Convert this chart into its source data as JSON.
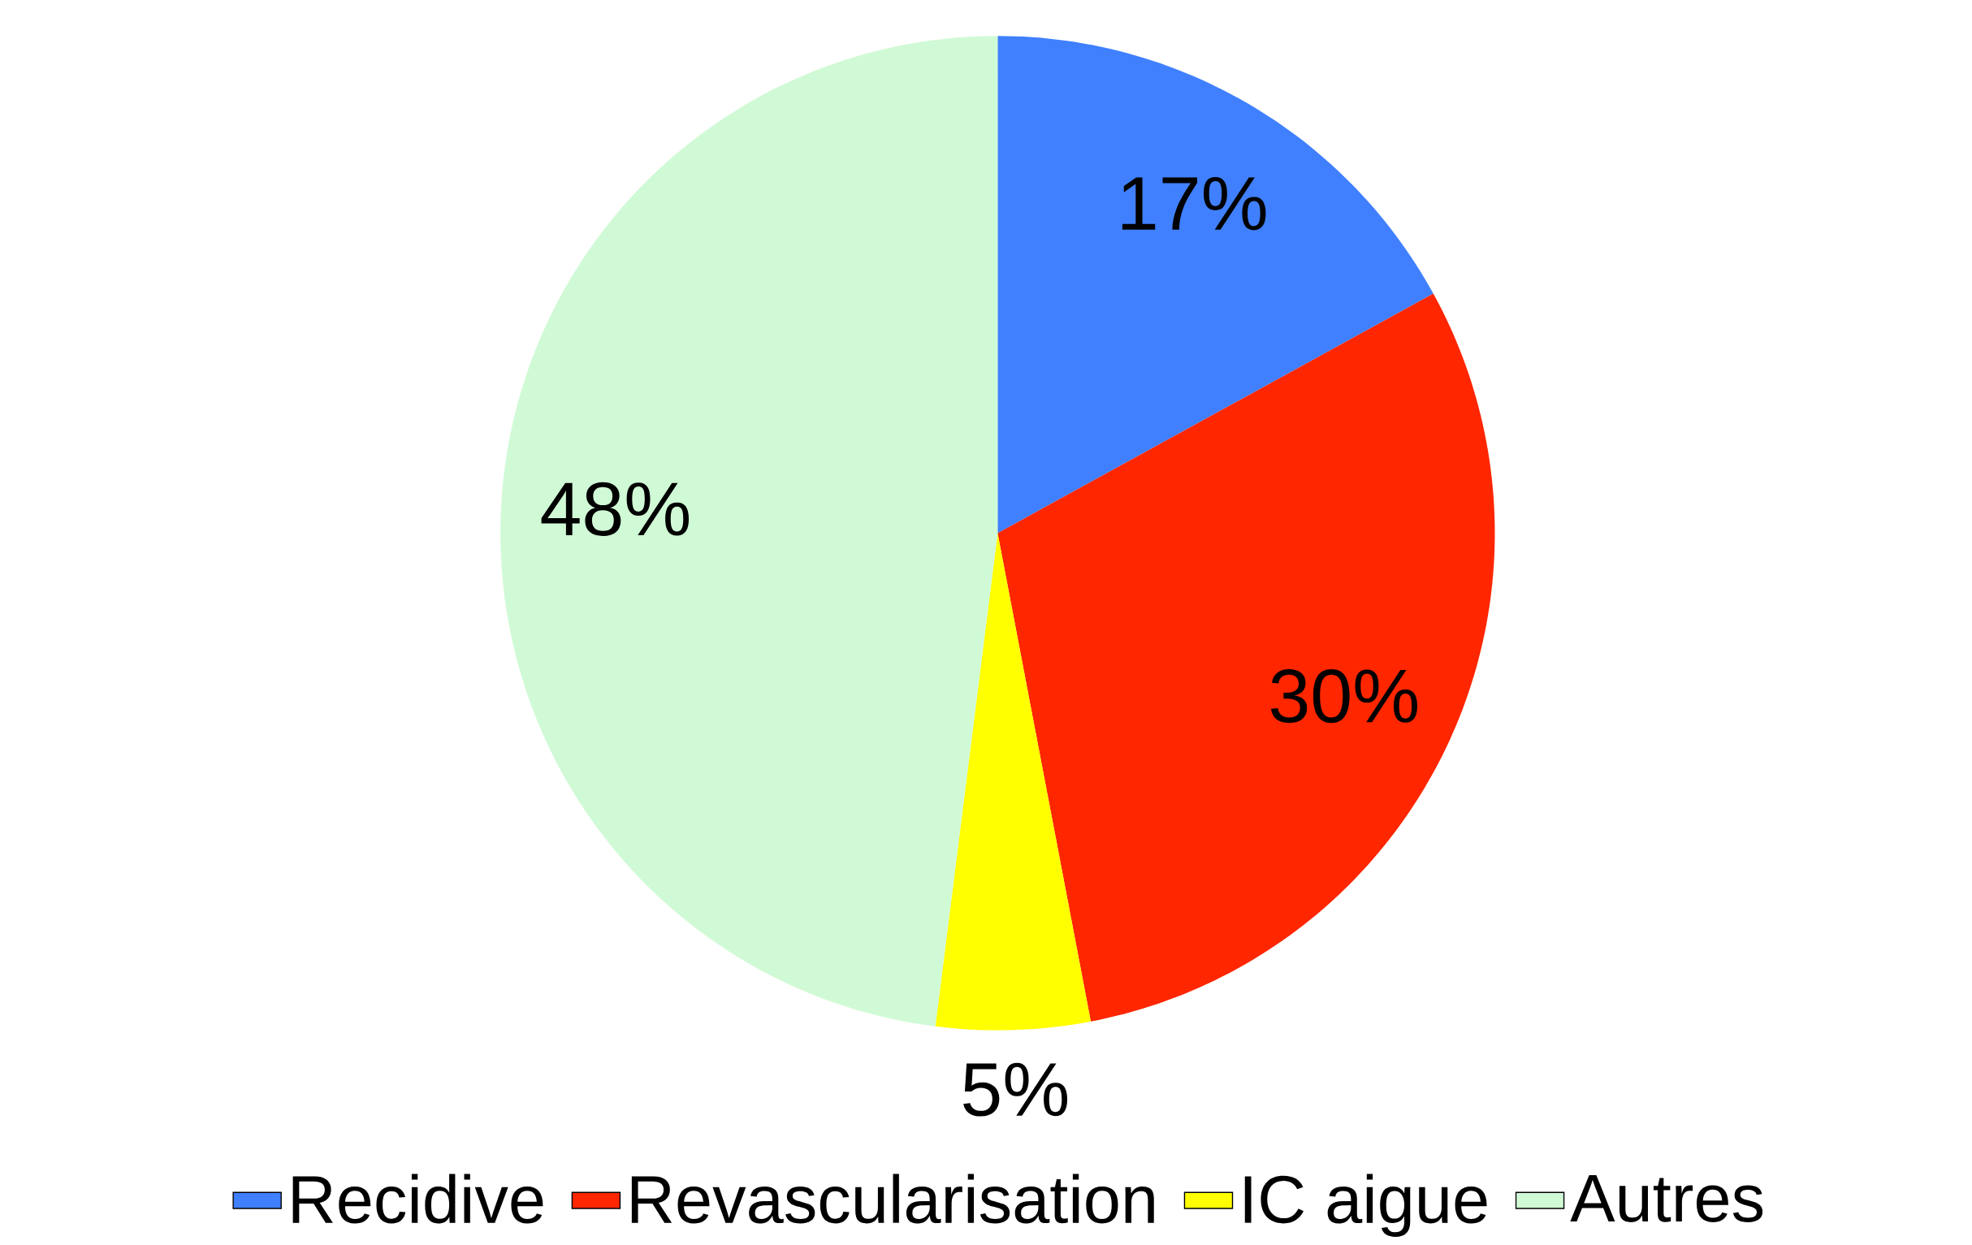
{
  "chart_data": {
    "type": "pie",
    "categories": [
      "Recidive",
      "Revascularisation",
      "IC aigue",
      "Autres"
    ],
    "values": [
      17,
      30,
      5,
      48
    ],
    "colors": [
      "#4080ff",
      "#ff2600",
      "#ffff00",
      "#d0fad5"
    ],
    "value_labels": [
      "17%",
      "30%",
      "5%",
      "48%"
    ],
    "legend": "bottom"
  }
}
